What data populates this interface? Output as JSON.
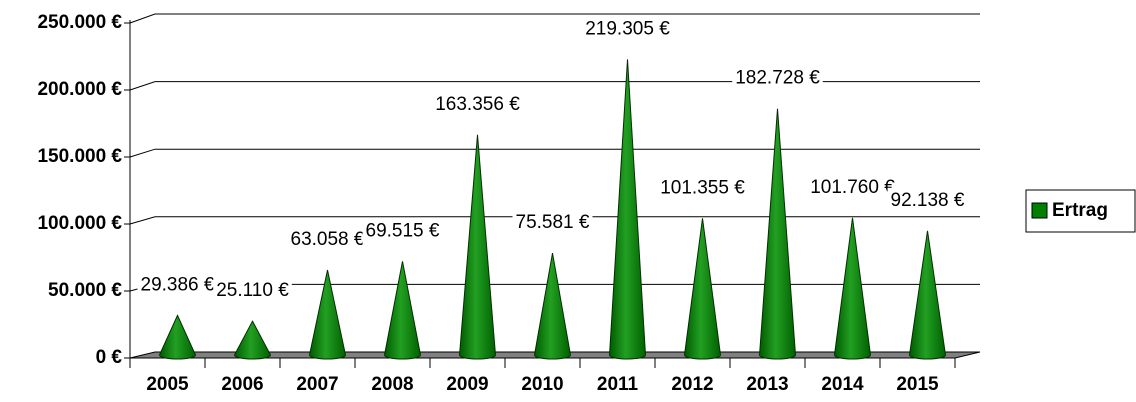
{
  "chart_data": {
    "type": "bar",
    "categories": [
      "2005",
      "2006",
      "2007",
      "2008",
      "2009",
      "2010",
      "2011",
      "2012",
      "2013",
      "2014",
      "2015"
    ],
    "series": [
      {
        "name": "Ertrag",
        "color": "#008000",
        "values": [
          29386,
          25110,
          63058,
          69515,
          163356,
          75581,
          219305,
          101355,
          182728,
          101760,
          92138
        ],
        "value_labels": [
          "29.386 €",
          "25.110 €",
          "63.058 €",
          "69.515 €",
          "163.356 €",
          "75.581 €",
          "219.305 €",
          "101.355 €",
          "182.728 €",
          "101.760 €",
          "92.138 €"
        ]
      }
    ],
    "ylim": [
      0,
      250000
    ],
    "yticks": [
      {
        "value": 0,
        "label": "0 €"
      },
      {
        "value": 50000,
        "label": "50.000 €"
      },
      {
        "value": 100000,
        "label": "100.000 €"
      },
      {
        "value": 150000,
        "label": "150.000 €"
      },
      {
        "value": 200000,
        "label": "200.000 €"
      },
      {
        "value": 250000,
        "label": "250.000 €"
      }
    ],
    "grid": true,
    "legend": "right"
  }
}
